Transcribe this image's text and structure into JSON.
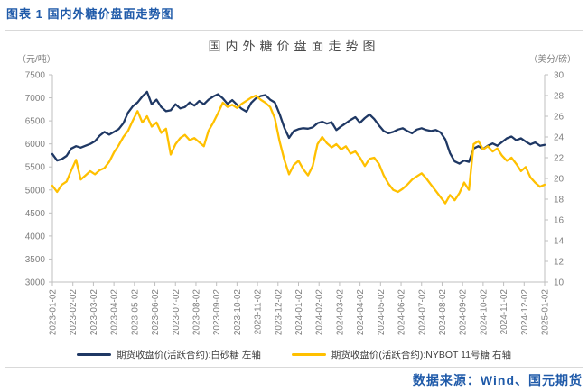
{
  "header": {
    "title": "图表 1 国内外糖价盘面走势图"
  },
  "footer": {
    "source": "数据来源：Wind、国元期货"
  },
  "colors": {
    "caption_blue": "#1f5aa9",
    "series_blue": "#1f3864",
    "series_yellow": "#ffc000",
    "axis_line": "#bfbfbf",
    "tick_text": "#7f7f7f",
    "panel_border": "#d9d9d9"
  },
  "chart_data": {
    "type": "line",
    "title": "国内外糖价盘面走势图",
    "unit_left": "（元/吨）",
    "unit_right": "（美分/磅）",
    "grid": false,
    "legend_position": "bottom",
    "y_left": {
      "label": "元/吨",
      "min": 3000,
      "max": 7500,
      "step": 500,
      "ticks": [
        7500,
        7000,
        6500,
        6000,
        5500,
        5000,
        4500,
        4000,
        3500,
        3000
      ]
    },
    "y_right": {
      "label": "美分/磅",
      "min": 10,
      "max": 30,
      "step": 2,
      "ticks": [
        30,
        28,
        26,
        24,
        22,
        20,
        18,
        16,
        14,
        12,
        10
      ]
    },
    "x_tick_labels": [
      "2023-01-02",
      "2023-02-02",
      "2023-03-02",
      "2023-04-02",
      "2023-05-02",
      "2023-06-02",
      "2023-07-02",
      "2023-08-02",
      "2023-09-02",
      "2023-10-02",
      "2023-11-02",
      "2023-12-02",
      "2024-01-02",
      "2024-02-02",
      "2024-03-02",
      "2024-04-02",
      "2024-05-02",
      "2024-06-02",
      "2024-07-02",
      "2024-08-02",
      "2024-09-02",
      "2024-10-02",
      "2024-11-02",
      "2024-12-02",
      "2025-01-02"
    ],
    "series": [
      {
        "name": "期货收盘价(活跃合约):白砂糖 左轴",
        "axis": "left",
        "color": "#1f3864",
        "values": [
          5780,
          5640,
          5670,
          5740,
          5900,
          5950,
          5920,
          5960,
          6000,
          6060,
          6180,
          6260,
          6200,
          6260,
          6320,
          6450,
          6680,
          6820,
          6900,
          7030,
          7130,
          6860,
          6960,
          6800,
          6710,
          6730,
          6860,
          6770,
          6800,
          6900,
          6830,
          6930,
          6860,
          6960,
          7030,
          7080,
          6990,
          6870,
          6950,
          6850,
          6760,
          6700,
          6890,
          6990,
          7040,
          7060,
          6960,
          6900,
          6650,
          6350,
          6130,
          6280,
          6320,
          6340,
          6330,
          6360,
          6450,
          6480,
          6440,
          6470,
          6300,
          6380,
          6450,
          6520,
          6580,
          6460,
          6560,
          6640,
          6540,
          6400,
          6280,
          6230,
          6260,
          6310,
          6340,
          6280,
          6230,
          6310,
          6340,
          6300,
          6280,
          6300,
          6250,
          6100,
          5800,
          5620,
          5570,
          5640,
          5610,
          5900,
          5950,
          5890,
          5960,
          6010,
          5960,
          6040,
          6120,
          6160,
          6080,
          6120,
          6050,
          5990,
          6030,
          5960,
          5980
        ]
      },
      {
        "name": "期货收盘价(活跃合约):NYBOT 11号糖 右轴",
        "axis": "right",
        "color": "#ffc000",
        "values": [
          19.3,
          18.7,
          19.4,
          19.7,
          20.8,
          21.8,
          19.9,
          20.3,
          20.7,
          20.4,
          20.8,
          21.0,
          21.6,
          22.5,
          23.2,
          24.0,
          24.6,
          25.6,
          26.5,
          25.4,
          26.0,
          25.0,
          25.4,
          24.4,
          24.8,
          22.3,
          23.3,
          23.9,
          24.2,
          23.7,
          23.9,
          23.5,
          23.1,
          24.6,
          25.4,
          26.3,
          27.3,
          26.9,
          27.1,
          26.8,
          27.2,
          27.5,
          27.8,
          28.0,
          27.6,
          27.3,
          26.9,
          25.8,
          23.6,
          21.8,
          20.4,
          21.3,
          21.7,
          20.9,
          20.3,
          21.2,
          23.3,
          24.0,
          23.4,
          23.0,
          23.3,
          22.8,
          23.1,
          22.4,
          22.6,
          22.0,
          21.2,
          21.9,
          22.0,
          21.4,
          20.3,
          19.5,
          18.9,
          18.7,
          19.0,
          19.4,
          19.9,
          20.2,
          20.5,
          20.0,
          19.4,
          18.8,
          18.2,
          17.6,
          18.4,
          17.9,
          18.6,
          19.6,
          18.9,
          23.3,
          23.6,
          22.8,
          23.1,
          22.6,
          22.9,
          22.2,
          21.7,
          22.0,
          21.4,
          20.7,
          21.1,
          20.1,
          19.6,
          19.2,
          19.4
        ]
      }
    ]
  }
}
